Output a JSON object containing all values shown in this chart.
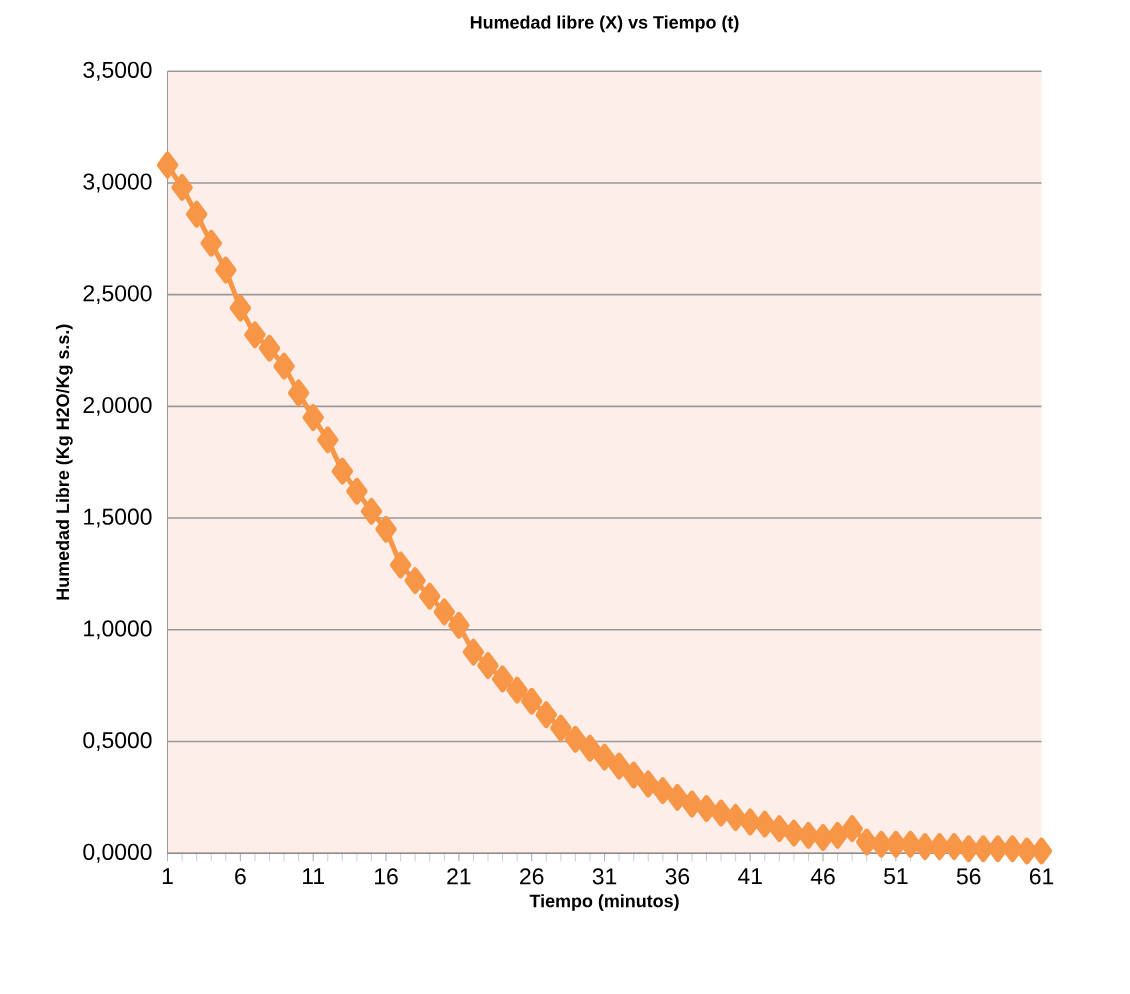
{
  "chart_data": {
    "type": "line",
    "title": "Humedad libre (X) vs Tiempo (t)",
    "xlabel": "Tiempo (minutos)",
    "ylabel": "Humedad Libre (Kg H2O/Kg s.s.)",
    "categories": [
      "1",
      null,
      null,
      null,
      null,
      "6",
      null,
      null,
      null,
      null,
      "11",
      null,
      null,
      null,
      null,
      "16",
      null,
      null,
      null,
      null,
      "21",
      null,
      null,
      null,
      null,
      "26",
      null,
      null,
      null,
      null,
      "31",
      null,
      null,
      null,
      null,
      "36",
      null,
      null,
      null,
      null,
      "41",
      null,
      null,
      null,
      null,
      "46",
      null,
      null,
      null,
      null,
      "51",
      null,
      null,
      null,
      null,
      "56",
      null,
      null,
      null,
      null,
      "61"
    ],
    "series": [
      {
        "color": "#f79646",
        "values": [
          3.08,
          2.98,
          2.86,
          2.73,
          2.61,
          2.44,
          2.32,
          2.26,
          2.18,
          2.06,
          1.95,
          1.85,
          1.71,
          1.62,
          1.53,
          1.45,
          1.29,
          1.22,
          1.15,
          1.08,
          1.02,
          0.9,
          0.84,
          0.78,
          0.73,
          0.68,
          0.62,
          0.56,
          0.51,
          0.47,
          0.43,
          0.39,
          0.35,
          0.31,
          0.28,
          0.25,
          0.22,
          0.2,
          0.18,
          0.16,
          0.14,
          0.13,
          0.11,
          0.09,
          0.08,
          0.07,
          0.08,
          0.11,
          0.05,
          0.04,
          0.04,
          0.04,
          0.03,
          0.03,
          0.03,
          0.02,
          0.02,
          0.02,
          0.02,
          0.01,
          0.01
        ]
      }
    ],
    "ylim": [
      0,
      3.5
    ],
    "yticks": [
      {
        "value": 0,
        "label": "0,0000"
      },
      {
        "value": 0.5,
        "label": "0,5000"
      },
      {
        "value": 1,
        "label": "1,0000"
      },
      {
        "value": 1.5,
        "label": "1,5000"
      },
      {
        "value": 2,
        "label": "2,0000"
      },
      {
        "value": 2.5,
        "label": "2,5000"
      },
      {
        "value": 3,
        "label": "3,0000"
      },
      {
        "value": 3.5,
        "label": "3,5000"
      }
    ],
    "grid": "y",
    "marker": "diamond",
    "line_style": "solid"
  }
}
